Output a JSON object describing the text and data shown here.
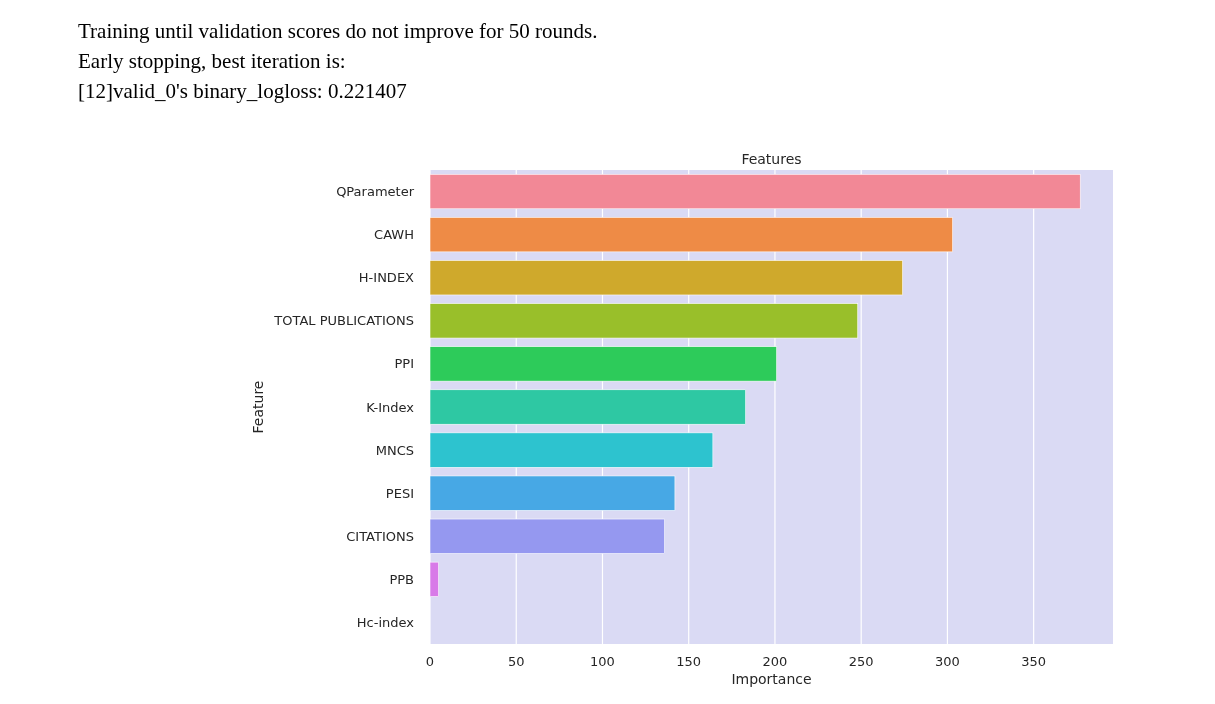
{
  "chart_data": {
    "type": "bar",
    "orientation": "horizontal",
    "title": "Features",
    "xlabel": "Importance",
    "ylabel": "Feature",
    "annotations": [
      "Training until validation scores do not improve for 50 rounds.",
      "Early stopping, best iteration is:",
      "[12]valid_0's binary_logloss: 0.221407"
    ],
    "categories": [
      "QParameter",
      "CAWH",
      "H-INDEX",
      "TOTAL PUBLICATIONS",
      "PPI",
      "K-Index",
      "MNCS",
      "PESI",
      "CITATIONS",
      "PPB",
      "Hc-index"
    ],
    "values": [
      377,
      303,
      274,
      248,
      201,
      183,
      164,
      142,
      136,
      5,
      0
    ],
    "colors": [
      "#f28896",
      "#ee8b46",
      "#cfa92c",
      "#99bf2a",
      "#2dcb5a",
      "#2ec8a3",
      "#2dc3cf",
      "#47a8e5",
      "#9598f0",
      "#d87ae8",
      "#f37ac5"
    ],
    "xlim": [
      0,
      396
    ],
    "xticks": [
      0,
      50,
      100,
      150,
      200,
      250,
      300,
      350
    ],
    "grid": "x"
  }
}
